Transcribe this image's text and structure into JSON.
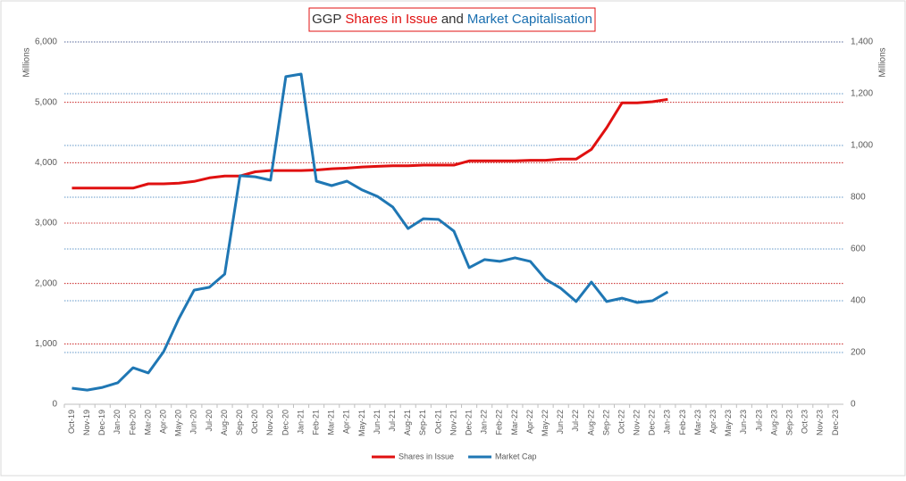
{
  "chart_data": {
    "type": "line",
    "title": [
      {
        "text": "GGP",
        "color": "#333333"
      },
      {
        "text": "Shares in Issue",
        "color": "#e01010"
      },
      {
        "text": "and",
        "color": "#333333"
      },
      {
        "text": "Market Capitalisation",
        "color": "#1a6fb0"
      }
    ],
    "ylabel": "Millions",
    "y2label": "Millions",
    "categories": [
      "Oct-19",
      "Nov-19",
      "Dec-19",
      "Jan-20",
      "Feb-20",
      "Mar-20",
      "Apr-20",
      "May-20",
      "Jun-20",
      "Jul-20",
      "Aug-20",
      "Sep-20",
      "Oct-20",
      "Nov-20",
      "Dec-20",
      "Jan-21",
      "Feb-21",
      "Mar-21",
      "Apr-21",
      "May-21",
      "Jun-21",
      "Jul-21",
      "Aug-21",
      "Sep-21",
      "Oct-21",
      "Nov-21",
      "Dec-21",
      "Jan-22",
      "Feb-22",
      "Mar-22",
      "Apr-22",
      "May-22",
      "Jun-22",
      "Jul-22",
      "Aug-22",
      "Sep-22",
      "Oct-22",
      "Nov-22",
      "Dec-22",
      "Jan-23",
      "Feb-23",
      "Mar-23",
      "Apr-23",
      "May-23",
      "Jun-23",
      "Jul-23",
      "Aug-23",
      "Sep-23",
      "Oct-23",
      "Nov-23",
      "Dec-23"
    ],
    "series": [
      {
        "name": "Shares in Issue",
        "color": "#e01010",
        "axis": "y",
        "values": [
          3580,
          3580,
          3580,
          3580,
          3580,
          3650,
          3650,
          3660,
          3690,
          3750,
          3780,
          3780,
          3850,
          3870,
          3870,
          3870,
          3880,
          3900,
          3910,
          3930,
          3940,
          3950,
          3950,
          3960,
          3960,
          3960,
          4030,
          4030,
          4030,
          4030,
          4040,
          4040,
          4060,
          4060,
          4220,
          4580,
          4990,
          4990,
          5010,
          5050,
          null,
          null,
          null,
          null,
          null,
          null,
          null,
          null,
          null,
          null,
          null
        ]
      },
      {
        "name": "Market Cap",
        "color": "#1f77b4",
        "axis": "y2",
        "values": [
          62,
          55,
          65,
          83,
          141,
          121,
          203,
          331,
          441,
          452,
          503,
          883,
          879,
          866,
          1266,
          1276,
          862,
          845,
          862,
          828,
          803,
          762,
          679,
          717,
          714,
          669,
          528,
          559,
          552,
          566,
          552,
          483,
          448,
          397,
          472,
          397,
          410,
          393,
          400,
          434,
          null,
          null,
          null,
          null,
          null,
          null,
          null,
          null,
          null,
          null,
          null
        ]
      }
    ],
    "ylim": [
      0,
      6000
    ],
    "yticks": [
      0,
      {
        "value": 1000,
        "label": "1,000"
      },
      {
        "value": 2000,
        "label": "2,000"
      },
      {
        "value": 3000,
        "label": "3,000"
      },
      {
        "value": 4000,
        "label": "4,000"
      },
      {
        "value": 5000,
        "label": "5,000"
      },
      {
        "value": 6000,
        "label": "6,000"
      }
    ],
    "y2lim": [
      0,
      1400
    ],
    "y2ticks": [
      0,
      200,
      400,
      600,
      800,
      {
        "value": 1000,
        "label": "1,000"
      },
      {
        "value": 1200,
        "label": "1,200"
      },
      {
        "value": 1400,
        "label": "1,400"
      }
    ],
    "grid": true,
    "grid_color": "#c00000",
    "grid2_color": "#2e75b6",
    "legend": "bottom"
  }
}
